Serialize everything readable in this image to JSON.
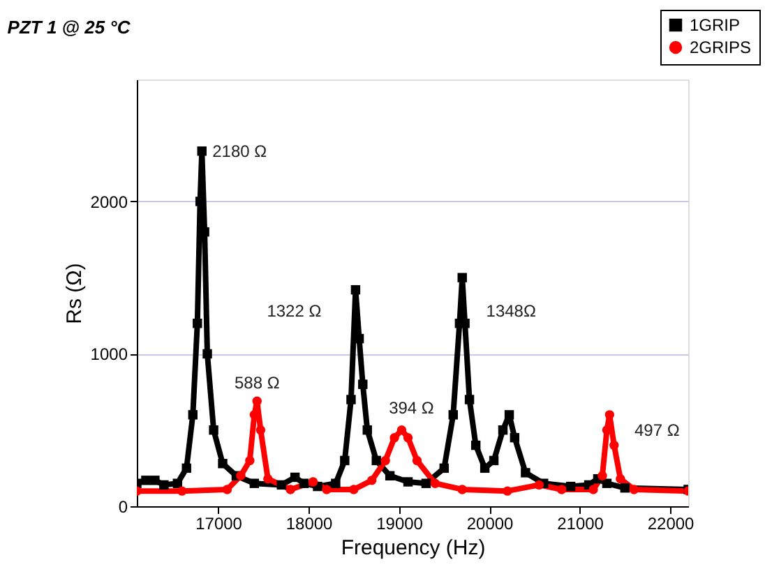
{
  "chart_data": {
    "type": "line",
    "title": "PZT 1 @ 25 °C",
    "xlabel": "Frequency (Hz)",
    "ylabel": "Rs (Ω)",
    "xlim": [
      16100,
      22200
    ],
    "ylim": [
      0,
      2800
    ],
    "xticks": [
      17000,
      18000,
      19000,
      20000,
      21000,
      22000
    ],
    "yticks": [
      0,
      1000,
      2000
    ],
    "grid": "y",
    "legend": "top right",
    "series": [
      {
        "name": "1GRIP",
        "color": "#000000",
        "marker": "square",
        "x": [
          16100,
          16200,
          16300,
          16400,
          16550,
          16650,
          16720,
          16770,
          16800,
          16820,
          16850,
          16880,
          16950,
          17050,
          17200,
          17400,
          17700,
          17850,
          17950,
          18100,
          18300,
          18400,
          18470,
          18520,
          18560,
          18600,
          18650,
          18750,
          18900,
          19100,
          19300,
          19500,
          19600,
          19670,
          19700,
          19730,
          19780,
          19850,
          19950,
          20050,
          20150,
          20220,
          20280,
          20400,
          20600,
          20900,
          21100,
          21200,
          21300,
          21500,
          22200
        ],
        "values": [
          150,
          170,
          170,
          140,
          150,
          250,
          600,
          1200,
          2000,
          2330,
          1800,
          1000,
          500,
          280,
          200,
          150,
          140,
          190,
          150,
          130,
          150,
          300,
          700,
          1420,
          1100,
          800,
          500,
          300,
          200,
          160,
          150,
          250,
          600,
          1200,
          1500,
          1200,
          700,
          400,
          250,
          300,
          500,
          600,
          450,
          220,
          150,
          130,
          140,
          180,
          150,
          120,
          110
        ]
      },
      {
        "name": "2GRIPS",
        "color": "#ff0000",
        "marker": "circle",
        "x": [
          16100,
          16600,
          17100,
          17250,
          17350,
          17400,
          17430,
          17470,
          17550,
          17800,
          18050,
          18200,
          18500,
          18700,
          18850,
          18950,
          19030,
          19100,
          19200,
          19400,
          19700,
          20200,
          20550,
          20800,
          21150,
          21250,
          21300,
          21330,
          21380,
          21450,
          21600,
          22200
        ],
        "values": [
          100,
          100,
          110,
          200,
          300,
          600,
          690,
          500,
          180,
          110,
          160,
          110,
          110,
          170,
          300,
          450,
          500,
          450,
          300,
          150,
          110,
          100,
          140,
          110,
          110,
          200,
          500,
          600,
          400,
          180,
          110,
          100
        ]
      }
    ],
    "annotations": [
      {
        "text": "2180 Ω",
        "x": 16820,
        "y": 2330
      },
      {
        "text": "1322 Ω",
        "x": 18520,
        "y": 1420
      },
      {
        "text": "588 Ω",
        "x": 17430,
        "y": 690
      },
      {
        "text": "394 Ω",
        "x": 19030,
        "y": 500
      },
      {
        "text": "1348Ω",
        "x": 19700,
        "y": 1500
      },
      {
        "text": "497 Ω",
        "x": 21330,
        "y": 600
      }
    ]
  }
}
